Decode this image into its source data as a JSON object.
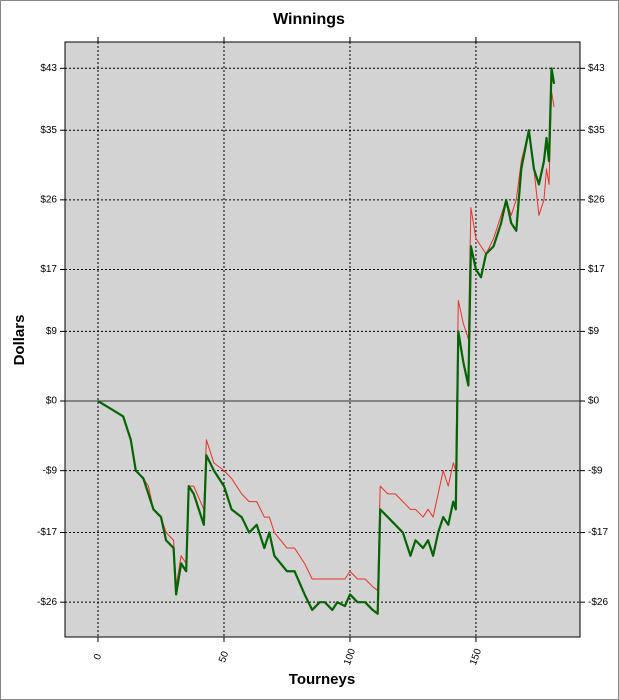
{
  "chart_data": {
    "type": "line",
    "title": "Winnings",
    "x_label": "Tourneys",
    "y_label": "Dollars",
    "xlim": [
      -13.1,
      191.3
    ],
    "ylim": [
      -30.5,
      46.4
    ],
    "xticks": [
      0,
      50,
      100,
      150
    ],
    "yticks": [
      {
        "value": 43,
        "label": "$43"
      },
      {
        "value": 35,
        "label": "$35"
      },
      {
        "value": 26,
        "label": "$26"
      },
      {
        "value": 17,
        "label": "$17"
      },
      {
        "value": 9,
        "label": "$9"
      },
      {
        "value": 0,
        "label": "$0"
      },
      {
        "value": -9,
        "label": "-$9"
      },
      {
        "value": -17,
        "label": "-$17"
      },
      {
        "value": -26,
        "label": "-$26"
      }
    ],
    "grid": true,
    "x": [
      0,
      5,
      10,
      13,
      15,
      18,
      20,
      22,
      25,
      27,
      30,
      31,
      33,
      35,
      36,
      38,
      42,
      43,
      46,
      50,
      53,
      57,
      60,
      63,
      66,
      68,
      70,
      75,
      78,
      82,
      85,
      88,
      90,
      93,
      95,
      98,
      100,
      103,
      106,
      109,
      111,
      112,
      115,
      118,
      121,
      124,
      126,
      129,
      131,
      133,
      135,
      137,
      139,
      141,
      142,
      143,
      145,
      147,
      148,
      150,
      152,
      154,
      157,
      160,
      162,
      164,
      166,
      168,
      171,
      173,
      175,
      177,
      178,
      179,
      180,
      181
    ],
    "series": [
      {
        "color": "#e8322c",
        "width": 1,
        "values": [
          0,
          -1,
          -2,
          -5,
          -9,
          -10,
          -11,
          -14,
          -15,
          -17,
          -18,
          -24,
          -20,
          -21,
          -11,
          -11,
          -14,
          -5,
          -8,
          -9,
          -10,
          -12,
          -13,
          -13,
          -15,
          -15,
          -17,
          -19,
          -19,
          -21,
          -23,
          -23,
          -23,
          -23,
          -23,
          -23,
          -22,
          -23,
          -23,
          -24,
          -24.5,
          -11,
          -12,
          -12,
          -13,
          -14,
          -14,
          -15,
          -14,
          -15,
          -12,
          -9,
          -11,
          -8,
          -9,
          13,
          10,
          8,
          25,
          21,
          20,
          19,
          21,
          24,
          26,
          24,
          26,
          31,
          35,
          30,
          24,
          26,
          30,
          28,
          40,
          38
        ]
      },
      {
        "color": "#006400",
        "width": 2.2,
        "values": [
          0,
          -1,
          -2,
          -5,
          -9,
          -10,
          -12,
          -14,
          -15,
          -18,
          -19,
          -25,
          -21,
          -22,
          -11,
          -12,
          -16,
          -7,
          -9,
          -11,
          -14,
          -15,
          -17,
          -16,
          -19,
          -17,
          -20,
          -22,
          -22,
          -25,
          -27,
          -26,
          -26,
          -27,
          -26,
          -26.5,
          -25,
          -26,
          -26,
          -27,
          -27.5,
          -14,
          -15,
          -16,
          -17,
          -20,
          -18,
          -19,
          -18,
          -20,
          -17,
          -15,
          -16,
          -13,
          -14,
          9,
          5,
          2,
          20,
          17,
          16,
          19,
          20,
          23,
          26,
          23,
          22,
          30,
          35,
          30,
          28,
          31,
          34,
          31,
          43,
          41
        ]
      }
    ]
  }
}
